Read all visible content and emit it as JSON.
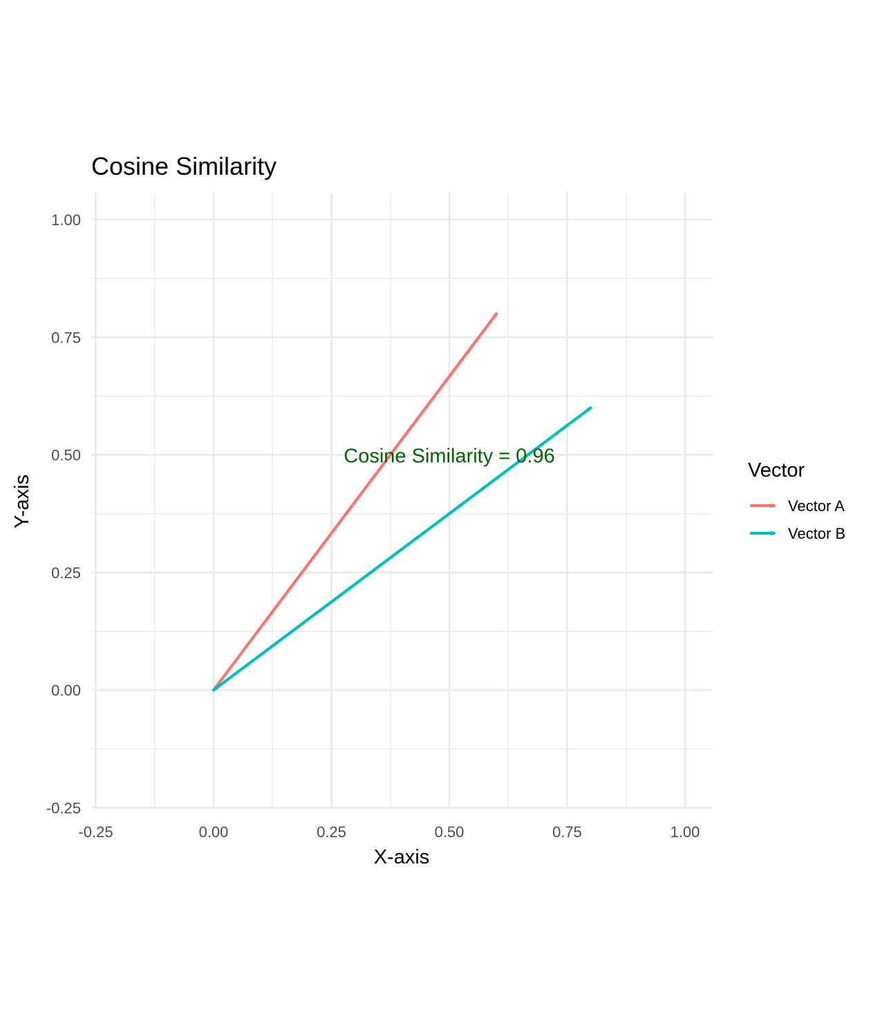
{
  "chart_data": {
    "type": "vector",
    "title": "Cosine Similarity",
    "xlabel": "X-axis",
    "ylabel": "Y-axis",
    "xlim": [
      -0.25,
      1.0
    ],
    "ylim": [
      -0.25,
      1.0
    ],
    "x_ticks": [
      "-0.25",
      "0.00",
      "0.25",
      "0.50",
      "0.75",
      "1.00"
    ],
    "y_ticks": [
      "-0.25",
      "0.00",
      "0.25",
      "0.50",
      "0.75",
      "1.00"
    ],
    "grid": true,
    "legend_title": "Vector",
    "legend_position": "right",
    "series": [
      {
        "name": "Vector A",
        "x0": 0,
        "y0": 0,
        "x1": 0.6,
        "y1": 0.8,
        "color": "#F8766D"
      },
      {
        "name": "Vector B",
        "x0": 0,
        "y0": 0,
        "x1": 0.8,
        "y1": 0.6,
        "color": "#00BFC4"
      }
    ],
    "annotation": {
      "text": "Cosine Similarity = 0.96",
      "x": 0.5,
      "y": 0.5,
      "color": "#006400"
    }
  }
}
